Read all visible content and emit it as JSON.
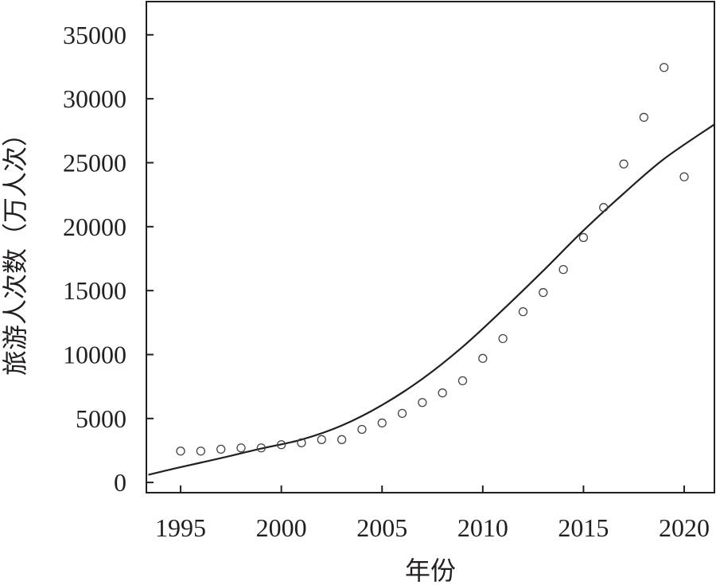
{
  "chart_data": {
    "type": "scatter",
    "title": "",
    "xlabel": "年份",
    "ylabel": "旅游人次数（万人次）",
    "xlim": [
      1993.3,
      2021.5
    ],
    "ylim": [
      -800,
      37600
    ],
    "x_ticks": [
      1995,
      2000,
      2005,
      2010,
      2015,
      2020
    ],
    "y_ticks": [
      0,
      5000,
      10000,
      15000,
      20000,
      25000,
      30000,
      35000
    ],
    "grid": false,
    "legend": "none",
    "series": [
      {
        "kind": "scatter",
        "marker": "open-circle",
        "points": [
          {
            "x": 1995,
            "y": 2450
          },
          {
            "x": 1996,
            "y": 2450
          },
          {
            "x": 1997,
            "y": 2600
          },
          {
            "x": 1998,
            "y": 2700
          },
          {
            "x": 1999,
            "y": 2700
          },
          {
            "x": 2000,
            "y": 2950
          },
          {
            "x": 2001,
            "y": 3100
          },
          {
            "x": 2002,
            "y": 3350
          },
          {
            "x": 2003,
            "y": 3350
          },
          {
            "x": 2004,
            "y": 4150
          },
          {
            "x": 2005,
            "y": 4650
          },
          {
            "x": 2006,
            "y": 5400
          },
          {
            "x": 2007,
            "y": 6250
          },
          {
            "x": 2008,
            "y": 7000
          },
          {
            "x": 2009,
            "y": 7950
          },
          {
            "x": 2010,
            "y": 9700
          },
          {
            "x": 2011,
            "y": 11250
          },
          {
            "x": 2012,
            "y": 13350
          },
          {
            "x": 2013,
            "y": 14850
          },
          {
            "x": 2014,
            "y": 16650
          },
          {
            "x": 2015,
            "y": 19150
          },
          {
            "x": 2016,
            "y": 21500
          },
          {
            "x": 2017,
            "y": 24900
          },
          {
            "x": 2018,
            "y": 28550
          },
          {
            "x": 2019,
            "y": 32450
          },
          {
            "x": 2020,
            "y": 23900
          }
        ]
      },
      {
        "kind": "line",
        "style": "solid",
        "points": [
          {
            "x": 1993.4,
            "y": 600
          },
          {
            "x": 1995,
            "y": 1200
          },
          {
            "x": 1997,
            "y": 1900
          },
          {
            "x": 1999,
            "y": 2650
          },
          {
            "x": 2001,
            "y": 3350
          },
          {
            "x": 2003,
            "y": 4450
          },
          {
            "x": 2005,
            "y": 6050
          },
          {
            "x": 2007,
            "y": 8100
          },
          {
            "x": 2009,
            "y": 10600
          },
          {
            "x": 2011,
            "y": 13500
          },
          {
            "x": 2013,
            "y": 16550
          },
          {
            "x": 2015,
            "y": 19700
          },
          {
            "x": 2017,
            "y": 22600
          },
          {
            "x": 2019,
            "y": 25300
          },
          {
            "x": 2021.5,
            "y": 28000
          }
        ]
      }
    ],
    "colors": {
      "ink": "#231f20",
      "marker_stroke": "#444444"
    }
  }
}
